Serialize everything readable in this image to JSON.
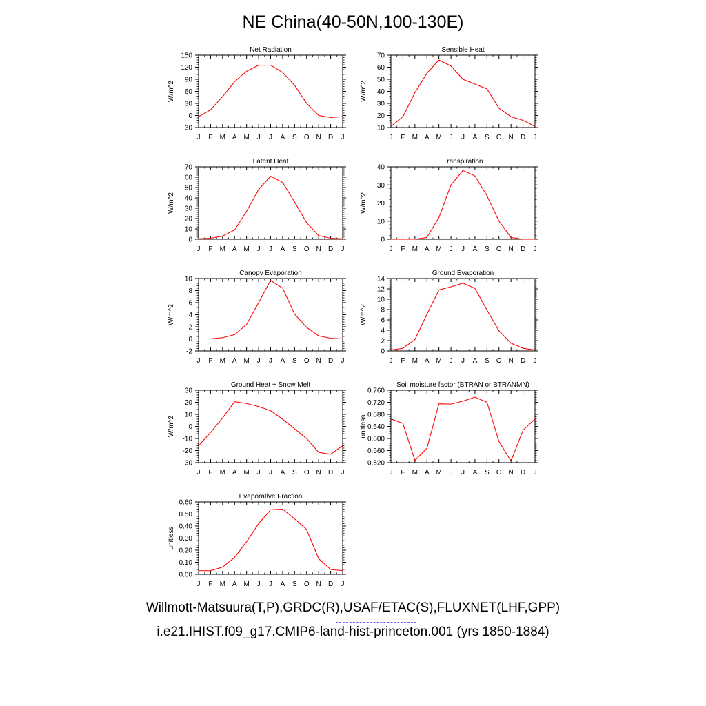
{
  "title": "NE China(40-50N,100-130E)",
  "captions": {
    "observations": "Willmott-Matsuura(T,P),GRDC(R),USAF/ETAC(S),FLUXNET(LHF,GPP)",
    "model": "i.e21.IHIST.f09_g17.CMIP6-land-hist-princeton.001 (yrs 1850-1884)"
  },
  "colors": {
    "model_line": "#ff0000",
    "observation_line": "#6666ee",
    "axes": "#000000"
  },
  "chart_data": [
    {
      "type": "line",
      "title": "Net Radiation",
      "ylabel": "W/m^2",
      "xlabel": "",
      "categories": [
        "J",
        "F",
        "M",
        "A",
        "M",
        "J",
        "J",
        "A",
        "S",
        "O",
        "N",
        "D",
        "J"
      ],
      "ylim": [
        -30,
        150
      ],
      "yticks": [
        "-30",
        "0",
        "30",
        "60",
        "90",
        "120",
        "150"
      ],
      "values": [
        -3,
        14,
        47,
        84,
        110,
        125,
        125,
        107,
        75,
        30,
        0,
        -5,
        -3
      ]
    },
    {
      "type": "line",
      "title": "Sensible Heat",
      "ylabel": "W/m^2",
      "xlabel": "",
      "categories": [
        "J",
        "F",
        "M",
        "A",
        "M",
        "J",
        "J",
        "A",
        "S",
        "O",
        "N",
        "D",
        "J"
      ],
      "ylim": [
        10,
        70
      ],
      "yticks": [
        "10",
        "20",
        "30",
        "40",
        "50",
        "60",
        "70"
      ],
      "values": [
        11,
        19,
        39,
        55,
        66,
        61,
        50,
        46,
        42,
        26,
        19,
        16,
        11
      ]
    },
    {
      "type": "line",
      "title": "Latent Heat",
      "ylabel": "W/m^2",
      "xlabel": "",
      "categories": [
        "J",
        "F",
        "M",
        "A",
        "M",
        "J",
        "J",
        "A",
        "S",
        "O",
        "N",
        "D",
        "J"
      ],
      "ylim": [
        0,
        70
      ],
      "yticks": [
        "0",
        "10",
        "20",
        "30",
        "40",
        "50",
        "60",
        "70"
      ],
      "values": [
        0.5,
        1,
        3,
        9,
        27,
        48,
        61,
        55,
        36,
        16,
        3.5,
        1,
        0.5
      ]
    },
    {
      "type": "line",
      "title": "Transpiration",
      "ylabel": "W/m^2",
      "xlabel": "",
      "categories": [
        "J",
        "F",
        "M",
        "A",
        "M",
        "J",
        "J",
        "A",
        "S",
        "O",
        "N",
        "D",
        "J"
      ],
      "ylim": [
        0,
        40
      ],
      "yticks": [
        "0",
        "10",
        "20",
        "30",
        "40"
      ],
      "values": [
        0,
        0,
        0,
        1,
        12,
        30,
        38,
        35,
        24,
        10,
        1,
        0,
        0
      ]
    },
    {
      "type": "line",
      "title": "Canopy Evaporation",
      "ylabel": "W/m^2",
      "xlabel": "",
      "categories": [
        "J",
        "F",
        "M",
        "A",
        "M",
        "J",
        "J",
        "A",
        "S",
        "O",
        "N",
        "D",
        "J"
      ],
      "ylim": [
        -2,
        10
      ],
      "yticks": [
        "-2",
        "0",
        "2",
        "4",
        "6",
        "8",
        "10"
      ],
      "values": [
        0,
        0,
        0.2,
        0.7,
        2.4,
        6,
        9.7,
        8.4,
        4.1,
        1.9,
        0.5,
        0.1,
        0
      ]
    },
    {
      "type": "line",
      "title": "Ground Evaporation",
      "ylabel": "W/m^2",
      "xlabel": "",
      "categories": [
        "J",
        "F",
        "M",
        "A",
        "M",
        "J",
        "J",
        "A",
        "S",
        "O",
        "N",
        "D",
        "J"
      ],
      "ylim": [
        0,
        14
      ],
      "yticks": [
        "0",
        "2",
        "4",
        "6",
        "8",
        "10",
        "12",
        "14"
      ],
      "values": [
        0.2,
        0.5,
        2.2,
        7.1,
        11.8,
        12.4,
        13.1,
        12.1,
        7.9,
        3.9,
        1.5,
        0.5,
        0.2
      ]
    },
    {
      "type": "line",
      "title": "Ground Heat + Snow Melt",
      "ylabel": "W/m^2",
      "xlabel": "",
      "categories": [
        "J",
        "F",
        "M",
        "A",
        "M",
        "J",
        "J",
        "A",
        "S",
        "O",
        "N",
        "D",
        "J"
      ],
      "ylim": [
        -30,
        30
      ],
      "yticks": [
        "-30",
        "-20",
        "-10",
        "0",
        "10",
        "20",
        "30"
      ],
      "values": [
        -16,
        -5,
        7,
        20.5,
        19,
        16.5,
        13,
        6,
        -2,
        -10,
        -21.5,
        -23,
        -16
      ]
    },
    {
      "type": "line",
      "title": "Soil moisture factor (BTRAN or BTRANMN)",
      "ylabel": "unitless",
      "xlabel": "",
      "categories": [
        "J",
        "F",
        "M",
        "A",
        "M",
        "J",
        "J",
        "A",
        "S",
        "O",
        "N",
        "D",
        "J"
      ],
      "ylim": [
        0.52,
        0.76
      ],
      "yticks": [
        "0.520",
        "0.560",
        "0.600",
        "0.640",
        "0.680",
        "0.720",
        "0.760"
      ],
      "values": [
        0.665,
        0.65,
        0.527,
        0.568,
        0.715,
        0.714,
        0.724,
        0.737,
        0.72,
        0.59,
        0.525,
        0.627,
        0.665
      ]
    },
    {
      "type": "line",
      "title": "Evaporative Fraction",
      "ylabel": "unitless",
      "xlabel": "",
      "categories": [
        "J",
        "F",
        "M",
        "A",
        "M",
        "J",
        "J",
        "A",
        "S",
        "O",
        "N",
        "D",
        "J"
      ],
      "ylim": [
        0,
        0.6
      ],
      "yticks": [
        "0.00",
        "0.10",
        "0.20",
        "0.30",
        "0.40",
        "0.50",
        "0.60"
      ],
      "values": [
        0.03,
        0.03,
        0.06,
        0.14,
        0.27,
        0.42,
        0.535,
        0.54,
        0.46,
        0.37,
        0.13,
        0.04,
        0.03
      ]
    }
  ]
}
